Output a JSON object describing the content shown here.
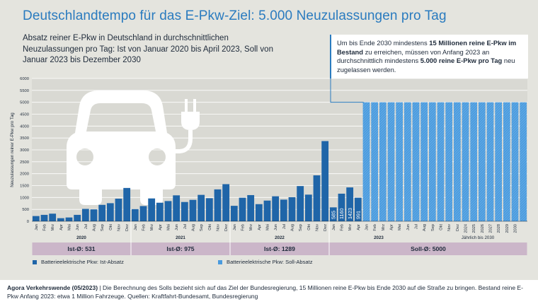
{
  "header": {
    "title": "Deutschlandtempo für das E-Pkw-Ziel: 5.000 Neuzulassungen pro Tag",
    "subtitle": "Absatz reiner E-Pkw in Deutschland in durchschnittlichen Neuzulassungen pro Tag: Ist von Januar 2020 bis April 2023, Soll von Januar 2023 bis Dezember 2030"
  },
  "callout": {
    "part1": "Um bis Ende 2030 mindestens ",
    "bold1": "15 Millionen reine E-Pkw im Bestand",
    "part2": " zu erreichen, müssen von Anfang 2023 an durchschnittlich mindestens ",
    "bold2": "5.000 reine E-Pkw pro Tag",
    "part3": " neu zugelassen werden."
  },
  "colors": {
    "ist": "#1f65a8",
    "soll": "#4a9bde",
    "band": "#cbb6c9",
    "gridline": "#ffffff",
    "icon": "#ffffff"
  },
  "icons": [
    "electric-car-icon",
    "charging-plug-icon"
  ],
  "chart_data": {
    "type": "bar",
    "ylabel": "Neuzulassungen reiner E-Pkw pro Tag",
    "ylim": [
      0,
      6000
    ],
    "yticks": [
      0,
      500,
      1000,
      1500,
      2000,
      2500,
      3000,
      3500,
      4000,
      4500,
      5000,
      5500,
      6000
    ],
    "grid": true,
    "month_labels": [
      "Jan",
      "Feb",
      "Mrz",
      "Apr",
      "Mai",
      "Jun",
      "Jul",
      "Aug",
      "Sep",
      "Okt",
      "Nov",
      "Dez"
    ],
    "years": [
      {
        "label": "2020",
        "avg_label": "Ist-Ø: 531"
      },
      {
        "label": "2021",
        "avg_label": "Ist-Ø: 975"
      },
      {
        "label": "2022",
        "avg_label": "Ist-Ø: 1289"
      },
      {
        "label": "2023",
        "avg_label": "Soll-Ø: 5000"
      },
      {
        "label": "Jährlich bis 2030"
      }
    ],
    "series": [
      {
        "name": "Batterieelektrische Pkw: Ist-Absatz",
        "values": [
          220,
          270,
          320,
          130,
          160,
          270,
          520,
          500,
          690,
          760,
          950,
          1400,
          510,
          640,
          960,
          780,
          850,
          1090,
          810,
          900,
          1110,
          970,
          1340,
          1560,
          650,
          990,
          1100,
          720,
          870,
          1050,
          910,
          1010,
          1480,
          1120,
          1930,
          3370,
          585,
          1160,
          1423,
          991
        ],
        "data_labels": [
          "585",
          "1160",
          "1423",
          "991"
        ]
      },
      {
        "name": "Batterieelektrische Pkw: Soll-Absatz",
        "value": 5000,
        "bar_count": 20,
        "x_labels": [
          "Jan",
          "Feb",
          "Mrz",
          "Apr",
          "Mai",
          "Jun",
          "Jul",
          "Aug",
          "Sep",
          "Okt",
          "Nov",
          "Dez",
          "2024",
          "2025",
          "2026",
          "2027",
          "2028",
          "2029",
          "2030",
          ""
        ]
      }
    ]
  },
  "footer": {
    "source_bold": "Agora Verkehrswende (05/2023)",
    "source_text": " | Die Berechnung des Solls bezieht sich auf das Ziel der Bundesregierung, 15 Millionen reine E-Pkw bis Ende 2030 auf die Straße zu bringen. Bestand reine E-Pkw Anfang 2023: etwa 1 Million Fahrzeuge. Quellen: Kraftfahrt-Bundesamt, Bundesregierung"
  }
}
